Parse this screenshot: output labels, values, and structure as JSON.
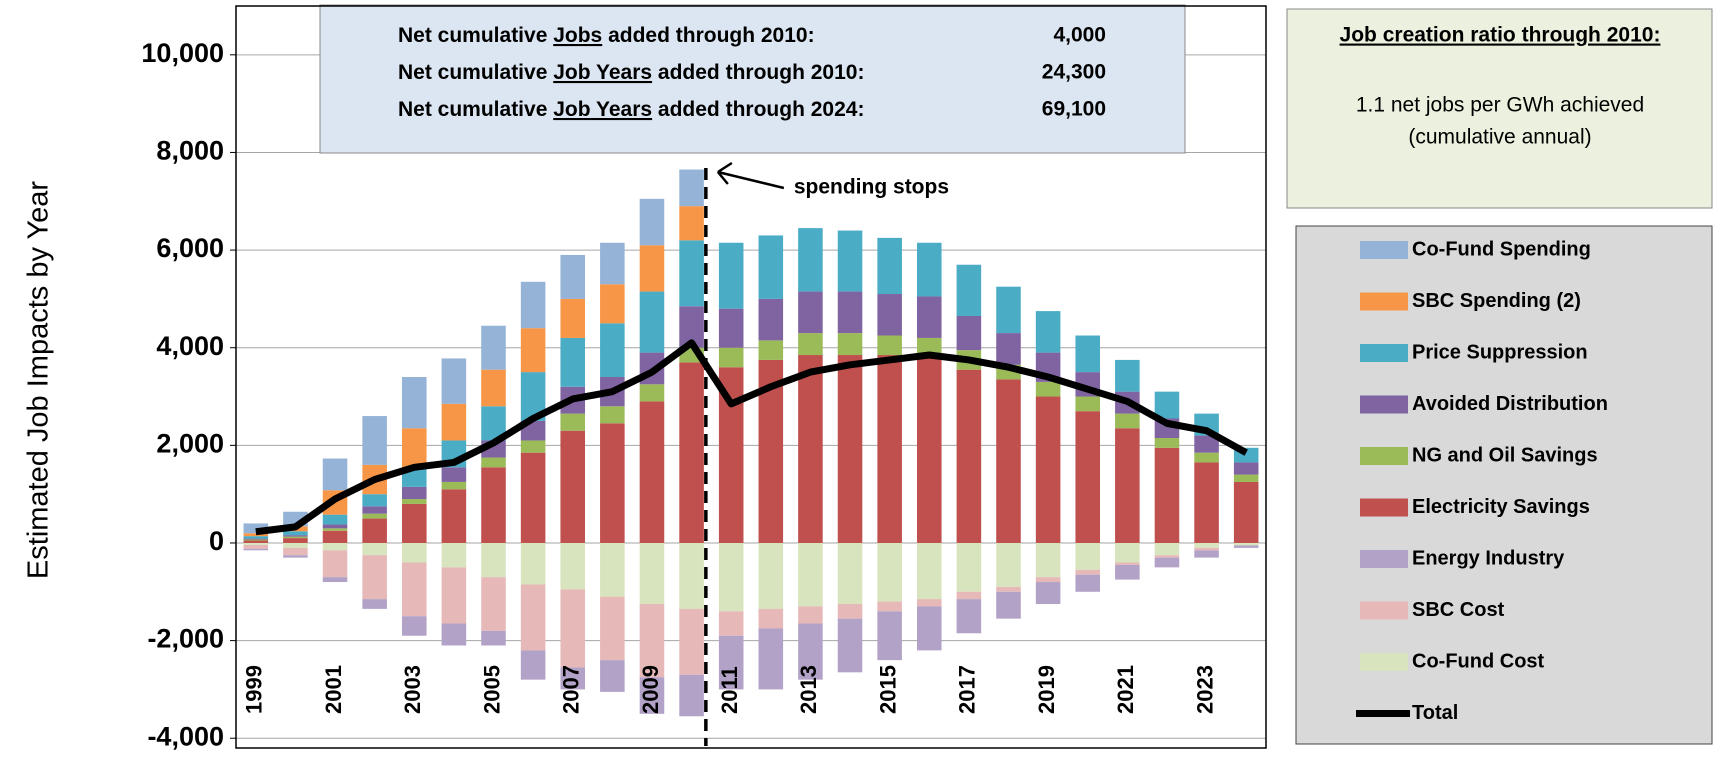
{
  "chart_data": {
    "type": "stacked-bar-line",
    "ylabel": "Estimated Job Impacts by Year",
    "categories": [
      "1999",
      null,
      "2001",
      null,
      "2003",
      null,
      "2005",
      null,
      "2007",
      null,
      "2009",
      null,
      "2011",
      null,
      "2013",
      null,
      "2015",
      null,
      "2017",
      null,
      "2019",
      null,
      "2021",
      null,
      "2023",
      null
    ],
    "ylim": [
      -4200,
      11000
    ],
    "yticks": [
      {
        "value": -4000,
        "label": "-4,000"
      },
      {
        "value": -2000,
        "label": "-2,000"
      },
      0,
      {
        "value": 2000,
        "label": "2,000"
      },
      {
        "value": 4000,
        "label": "4,000"
      },
      {
        "value": 6000,
        "label": "6,000"
      },
      {
        "value": 8000,
        "label": "8,000"
      },
      {
        "value": 10000,
        "label": "10,000"
      }
    ],
    "grid": true,
    "series": [
      {
        "name": "Co-Fund Spending",
        "color": "#95b3d7",
        "values": [
          200,
          300,
          650,
          1000,
          1050,
          930,
          900,
          950,
          900,
          850,
          950,
          750,
          0,
          0,
          0,
          0,
          0,
          0,
          0,
          0,
          0,
          0,
          0,
          0,
          0,
          0
        ]
      },
      {
        "name": "SBC Spending (2)",
        "color": "#f79646",
        "values": [
          60,
          100,
          500,
          600,
          800,
          750,
          750,
          900,
          800,
          800,
          950,
          700,
          0,
          0,
          0,
          0,
          0,
          0,
          0,
          0,
          0,
          0,
          0,
          0,
          0,
          0
        ]
      },
      {
        "name": "Price Suppression",
        "color": "#4bacc6",
        "values": [
          50,
          80,
          200,
          250,
          400,
          550,
          700,
          1000,
          1000,
          1100,
          1250,
          1350,
          1350,
          1300,
          1300,
          1250,
          1150,
          1100,
          1050,
          950,
          850,
          750,
          650,
          550,
          450,
          300
        ]
      },
      {
        "name": "Avoided Distribution",
        "color": "#8064a2",
        "values": [
          20,
          30,
          80,
          150,
          250,
          300,
          350,
          400,
          550,
          600,
          650,
          850,
          800,
          850,
          850,
          850,
          850,
          850,
          700,
          650,
          600,
          500,
          450,
          400,
          350,
          250
        ]
      },
      {
        "name": "NG and Oil Savings",
        "color": "#9bbb59",
        "values": [
          20,
          30,
          50,
          100,
          100,
          150,
          200,
          250,
          350,
          350,
          350,
          300,
          400,
          400,
          450,
          450,
          400,
          400,
          400,
          300,
          300,
          300,
          300,
          200,
          200,
          150
        ]
      },
      {
        "name": "Electricity Savings",
        "color": "#c0504d",
        "values": [
          50,
          100,
          250,
          500,
          800,
          1100,
          1550,
          1850,
          2300,
          2450,
          2900,
          3700,
          3600,
          3750,
          3850,
          3850,
          3850,
          3800,
          3550,
          3350,
          3000,
          2700,
          2350,
          1950,
          1650,
          1250
        ]
      },
      {
        "name": "Energy Industry",
        "color": "#b3a2c7",
        "values": [
          -30,
          -50,
          -100,
          -200,
          -400,
          -450,
          -300,
          -600,
          -450,
          -650,
          -750,
          -850,
          -1100,
          -1250,
          -1150,
          -1100,
          -1000,
          -900,
          -700,
          -550,
          -450,
          -350,
          -300,
          -200,
          -150,
          -50
        ]
      },
      {
        "name": "SBC Cost",
        "color": "#e6b9b8",
        "values": [
          -80,
          -150,
          -550,
          -900,
          -1100,
          -1150,
          -1100,
          -1350,
          -1600,
          -1300,
          -1500,
          -1350,
          -500,
          -400,
          -350,
          -300,
          -200,
          -150,
          -150,
          -100,
          -100,
          -100,
          -50,
          -50,
          -50,
          0
        ]
      },
      {
        "name": "Co-Fund Cost",
        "color": "#d7e4bd",
        "values": [
          -40,
          -100,
          -150,
          -250,
          -400,
          -500,
          -700,
          -850,
          -950,
          -1100,
          -1250,
          -1350,
          -1400,
          -1350,
          -1300,
          -1250,
          -1200,
          -1150,
          -1000,
          -900,
          -700,
          -550,
          -400,
          -250,
          -100,
          -50
        ]
      },
      {
        "name": "Total",
        "color": "#000000",
        "type": "line",
        "values": [
          230,
          330,
          900,
          1300,
          1550,
          1650,
          2050,
          2550,
          2950,
          3100,
          3500,
          4100,
          2850,
          3200,
          3500,
          3650,
          3750,
          3850,
          3750,
          3600,
          3400,
          3150,
          2900,
          2450,
          2300,
          1850
        ]
      }
    ],
    "annotation": "spending stops",
    "summary": [
      {
        "pre": "Net cumulative ",
        "underlined": "Jobs",
        "post": " added through 2010:",
        "value": "4,000"
      },
      {
        "pre": "Net cumulative ",
        "underlined": "Job Years",
        "post": " added through 2010:",
        "value": "24,300"
      },
      {
        "pre": "Net cumulative ",
        "underlined": "Job Years",
        "post": " added through 2024:",
        "value": "69,100"
      }
    ],
    "ratio_title": "Job creation ratio through 2010:",
    "ratio_lines": [
      "1.1 net jobs per GWh achieved",
      "(cumulative annual)"
    ]
  }
}
